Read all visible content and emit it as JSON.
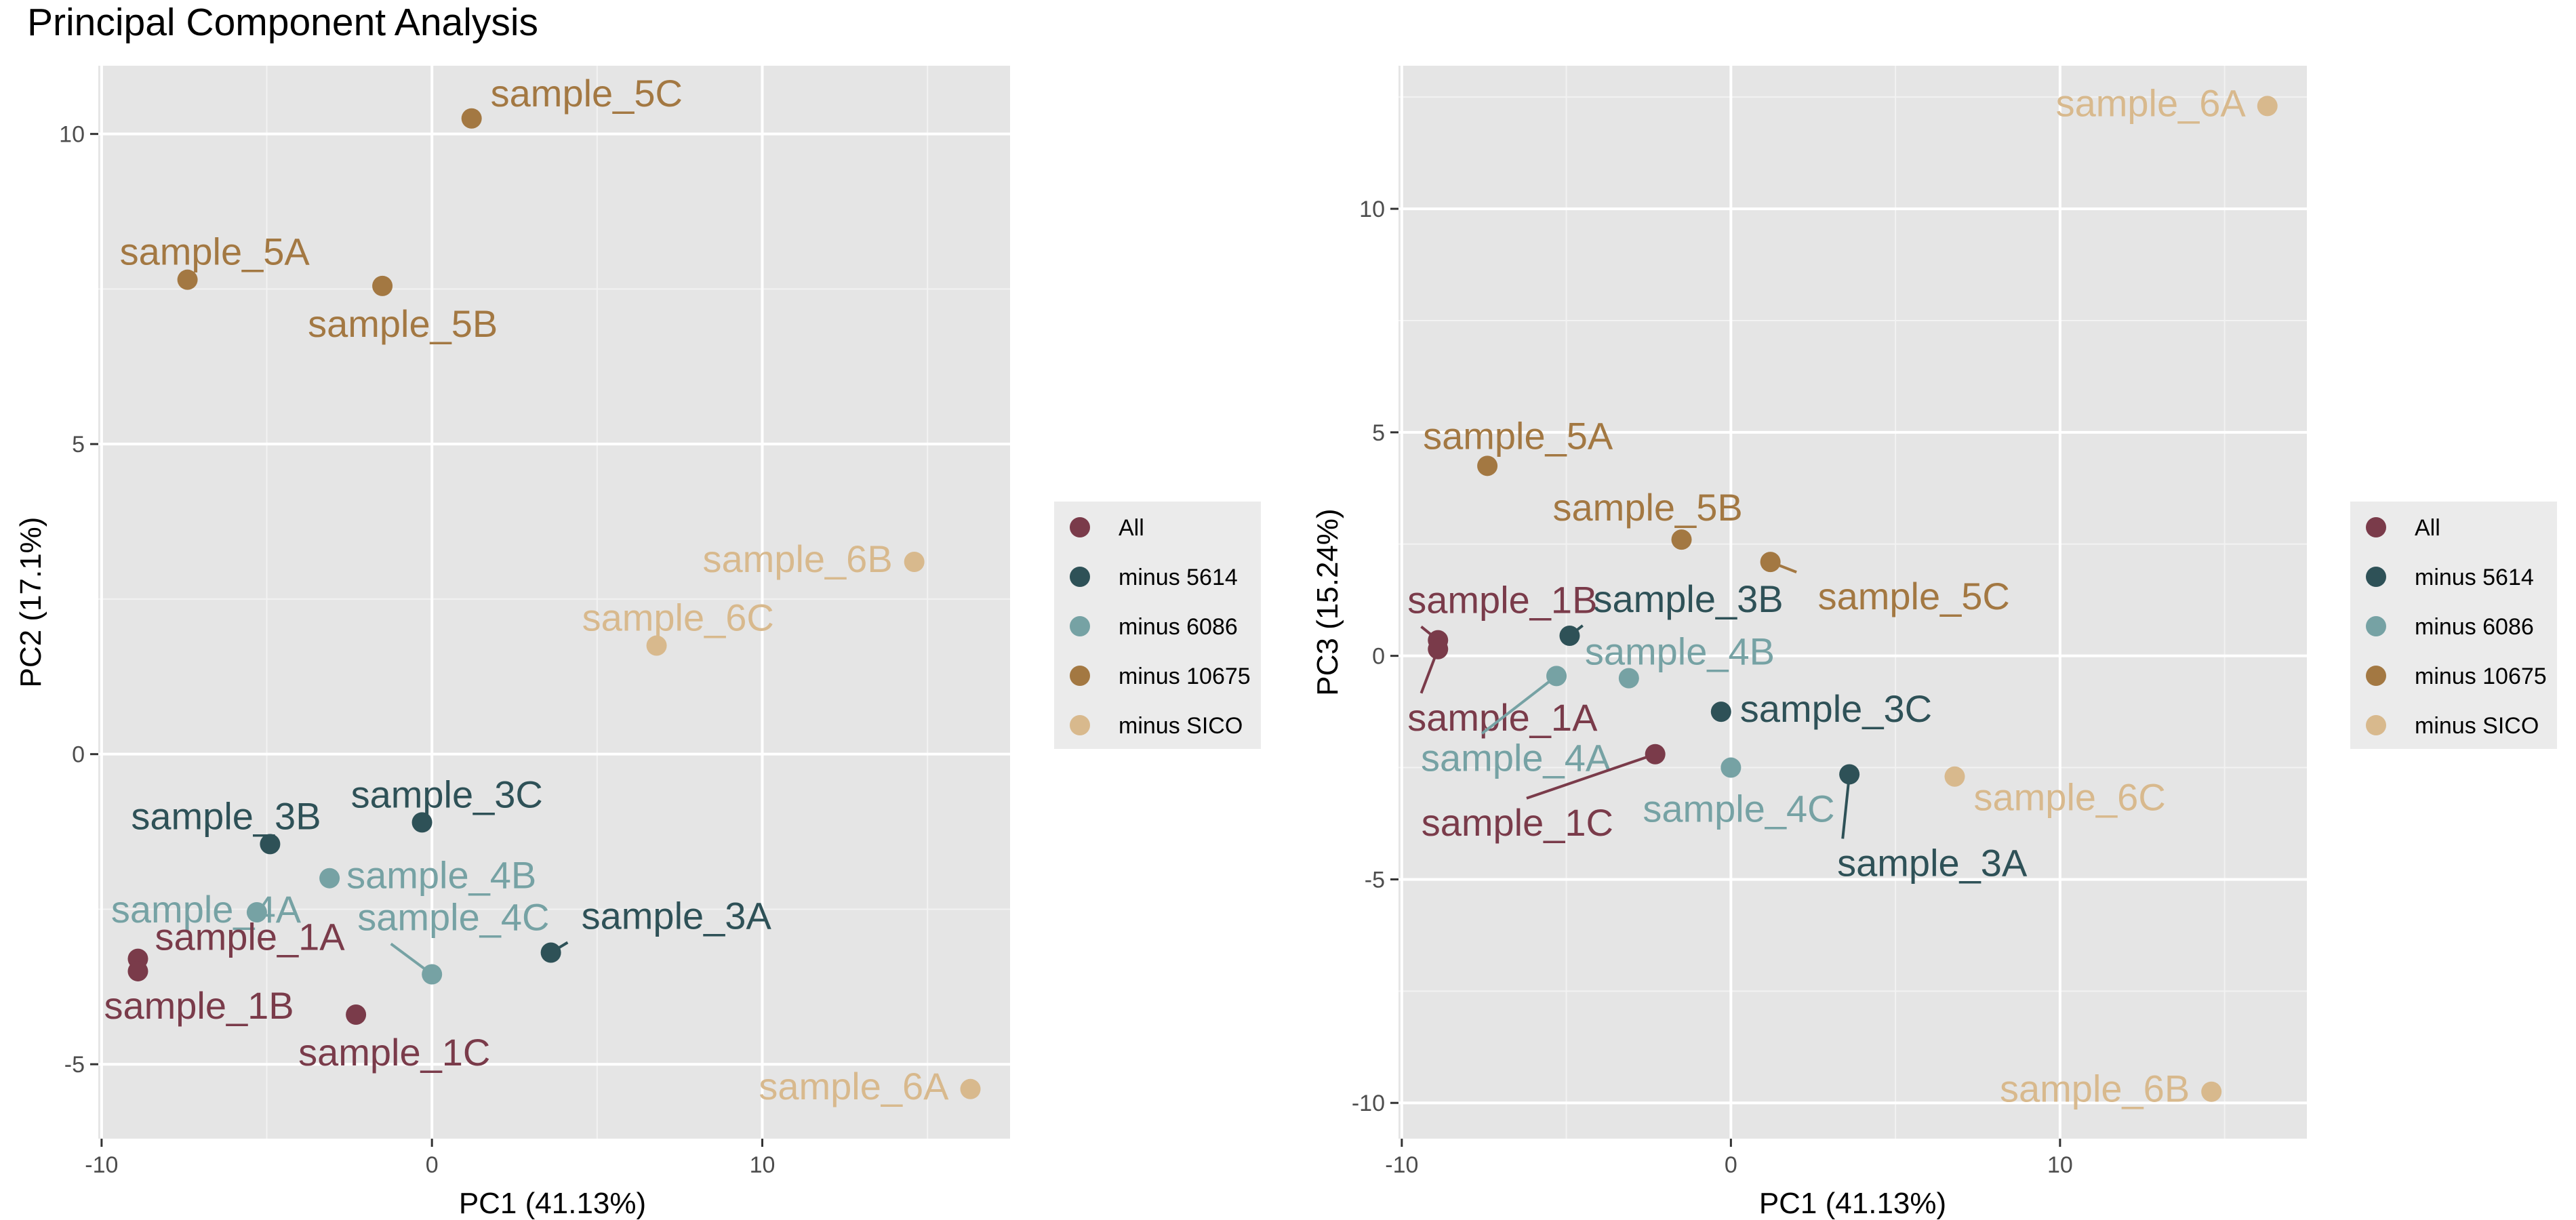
{
  "page_title": "Principal Component Analysis",
  "legend": [
    {
      "name": "All",
      "color": "#7a3b4a"
    },
    {
      "name": "minus 5614",
      "color": "#2e5157"
    },
    {
      "name": "minus 6086",
      "color": "#76a2a4"
    },
    {
      "name": "minus 10675",
      "color": "#a37842"
    },
    {
      "name": "minus SICO",
      "color": "#d8b98d"
    }
  ],
  "chart_data": [
    {
      "type": "scatter",
      "xlabel": "PC1 (41.13%)",
      "ylabel": "PC2 (17.1%)",
      "xlim": [
        -10.1,
        17.5
      ],
      "ylim": [
        -6.2,
        11.1
      ],
      "xticks": [
        -10,
        0,
        10
      ],
      "yticks": [
        -5,
        0,
        5,
        10
      ],
      "grid": true,
      "points": [
        {
          "label": "sample_5C",
          "group": "minus 10675",
          "x": 1.2,
          "y": 10.25
        },
        {
          "label": "sample_5A",
          "group": "minus 10675",
          "x": -7.4,
          "y": 7.65
        },
        {
          "label": "sample_5B",
          "group": "minus 10675",
          "x": -1.5,
          "y": 7.55
        },
        {
          "label": "sample_6B",
          "group": "minus SICO",
          "x": 14.6,
          "y": 3.1
        },
        {
          "label": "sample_6C",
          "group": "minus SICO",
          "x": 6.8,
          "y": 1.75
        },
        {
          "label": "sample_3C",
          "group": "minus 5614",
          "x": -0.3,
          "y": -1.1
        },
        {
          "label": "sample_3B",
          "group": "minus 5614",
          "x": -4.9,
          "y": -1.45
        },
        {
          "label": "sample_4B",
          "group": "minus 6086",
          "x": -3.1,
          "y": -2.0
        },
        {
          "label": "sample_4A",
          "group": "minus 6086",
          "x": -5.3,
          "y": -2.55
        },
        {
          "label": "sample_4C",
          "group": "minus 6086",
          "x": 0.0,
          "y": -3.55
        },
        {
          "label": "sample_3A",
          "group": "minus 5614",
          "x": 3.6,
          "y": -3.2
        },
        {
          "label": "sample_1A",
          "group": "All",
          "x": -8.9,
          "y": -3.3
        },
        {
          "label": "sample_1B",
          "group": "All",
          "x": -8.9,
          "y": -3.5
        },
        {
          "label": "sample_1C",
          "group": "All",
          "x": -2.3,
          "y": -4.2
        },
        {
          "label": "sample_6A",
          "group": "minus SICO",
          "x": 16.3,
          "y": -5.4
        }
      ]
    },
    {
      "type": "scatter",
      "xlabel": "PC1 (41.13%)",
      "ylabel": "PC3 (15.24%)",
      "xlim": [
        -10.1,
        17.5
      ],
      "ylim": [
        -10.8,
        13.2
      ],
      "xticks": [
        -10,
        0,
        10
      ],
      "yticks": [
        -10,
        -5,
        0,
        5,
        10
      ],
      "grid": true,
      "points": [
        {
          "label": "sample_6A",
          "group": "minus SICO",
          "x": 16.3,
          "y": 12.3
        },
        {
          "label": "sample_5A",
          "group": "minus 10675",
          "x": -7.4,
          "y": 4.25
        },
        {
          "label": "sample_5B",
          "group": "minus 10675",
          "x": -1.5,
          "y": 2.6
        },
        {
          "label": "sample_5C",
          "group": "minus 10675",
          "x": 1.2,
          "y": 2.1
        },
        {
          "label": "sample_1B",
          "group": "All",
          "x": -8.9,
          "y": 0.35
        },
        {
          "label": "sample_1A",
          "group": "All",
          "x": -8.9,
          "y": 0.15
        },
        {
          "label": "sample_3B",
          "group": "minus 5614",
          "x": -4.9,
          "y": 0.45
        },
        {
          "label": "sample_4B",
          "group": "minus 6086",
          "x": -3.1,
          "y": -0.5
        },
        {
          "label": "sample_4A",
          "group": "minus 6086",
          "x": -5.3,
          "y": -0.45
        },
        {
          "label": "sample_3C",
          "group": "minus 5614",
          "x": -0.3,
          "y": -1.25
        },
        {
          "label": "sample_1C",
          "group": "All",
          "x": -2.3,
          "y": -2.2
        },
        {
          "label": "sample_4C",
          "group": "minus 6086",
          "x": 0.0,
          "y": -2.5
        },
        {
          "label": "sample_3A",
          "group": "minus 5614",
          "x": 3.6,
          "y": -2.65
        },
        {
          "label": "sample_6C",
          "group": "minus SICO",
          "x": 6.8,
          "y": -2.7
        },
        {
          "label": "sample_6B",
          "group": "minus SICO",
          "x": 14.6,
          "y": -9.75
        }
      ]
    }
  ]
}
